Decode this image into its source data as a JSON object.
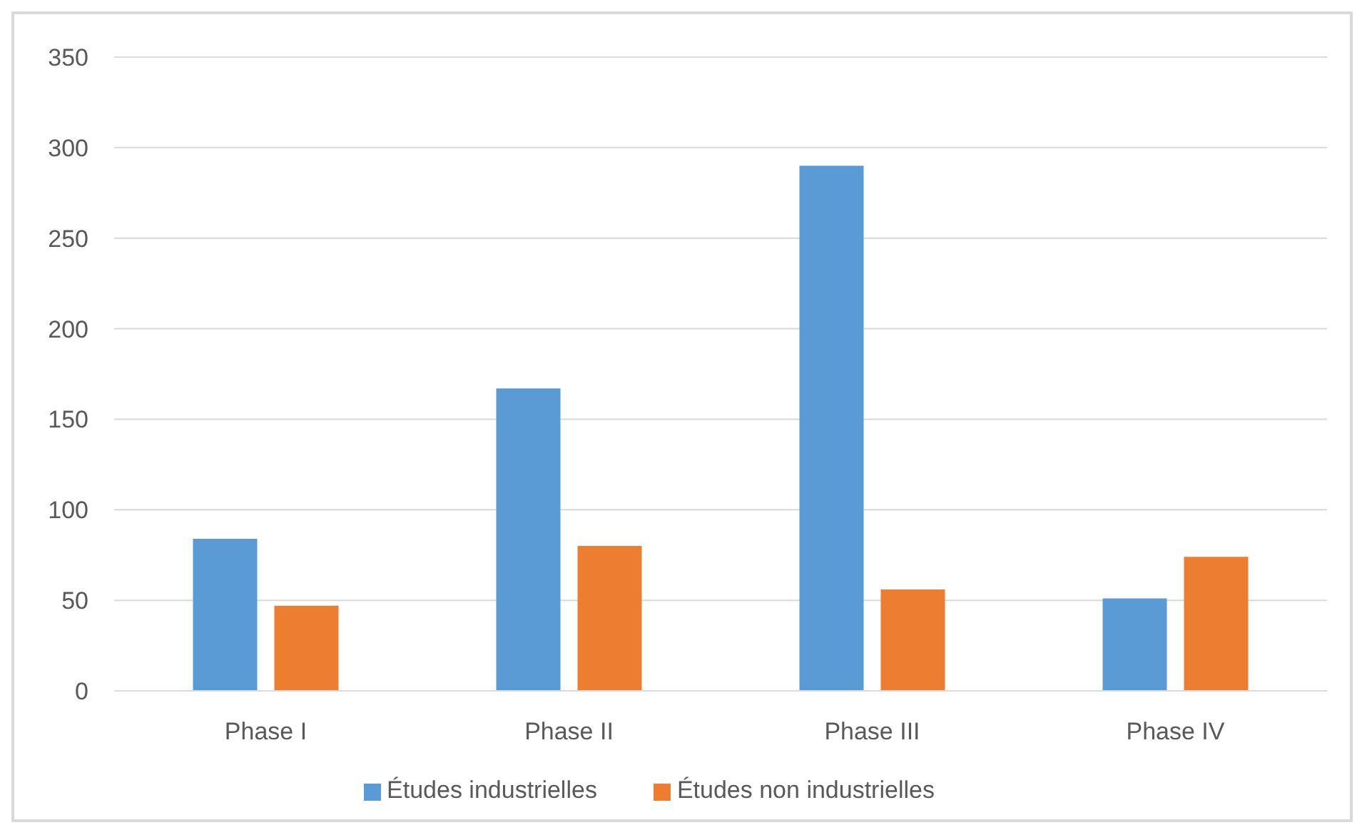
{
  "chart_data": {
    "type": "bar",
    "categories": [
      "Phase I",
      "Phase II",
      "Phase III",
      "Phase IV"
    ],
    "series": [
      {
        "name": "Études industrielles",
        "color": "#5b9bd5",
        "values": [
          84,
          167,
          290,
          51
        ]
      },
      {
        "name": "Études non industrielles",
        "color": "#ed7d31",
        "values": [
          47,
          80,
          56,
          74
        ]
      }
    ],
    "ylim": [
      0,
      350
    ],
    "yticks": [
      0,
      50,
      100,
      150,
      200,
      250,
      300,
      350
    ],
    "grid": "y",
    "legend": "bottom"
  }
}
